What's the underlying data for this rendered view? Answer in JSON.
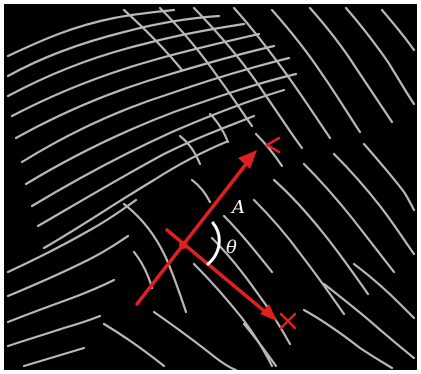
{
  "labels": {
    "a": "A",
    "theta": "θ"
  },
  "colors": {
    "background": "#000000",
    "ridge": "#bfbfbf",
    "annotation": "#e02020",
    "arc": "#ffffff"
  }
}
